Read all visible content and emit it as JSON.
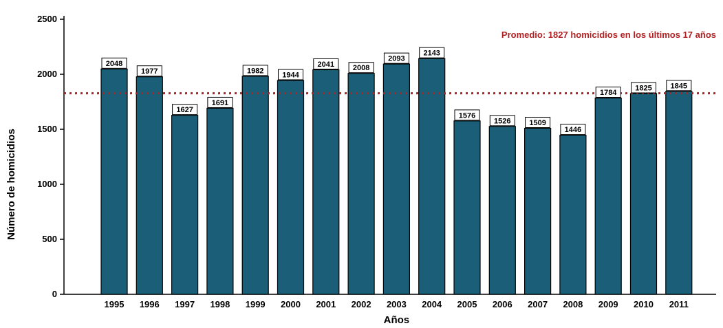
{
  "chart_data": {
    "type": "bar",
    "categories": [
      "1995",
      "1996",
      "1997",
      "1998",
      "1999",
      "2000",
      "2001",
      "2002",
      "2003",
      "2004",
      "2005",
      "2006",
      "2007",
      "2008",
      "2009",
      "2010",
      "2011"
    ],
    "values": [
      2048,
      1977,
      1627,
      1691,
      1982,
      1944,
      2041,
      2008,
      2093,
      2143,
      1576,
      1526,
      1509,
      1446,
      1784,
      1825,
      1845
    ],
    "xlabel": "Años",
    "ylabel": "Número de homicidios",
    "ylim": [
      0,
      2500
    ],
    "yticks": [
      0,
      500,
      1000,
      1500,
      2000,
      2500
    ],
    "grid": false,
    "data_labels": true,
    "bar_color": "#1b5e77",
    "reference_line": {
      "value": 1827,
      "label": "Promedio: 1827 homicidios en los últimos 17 años",
      "color": "#b22222",
      "style": "dotted"
    }
  }
}
